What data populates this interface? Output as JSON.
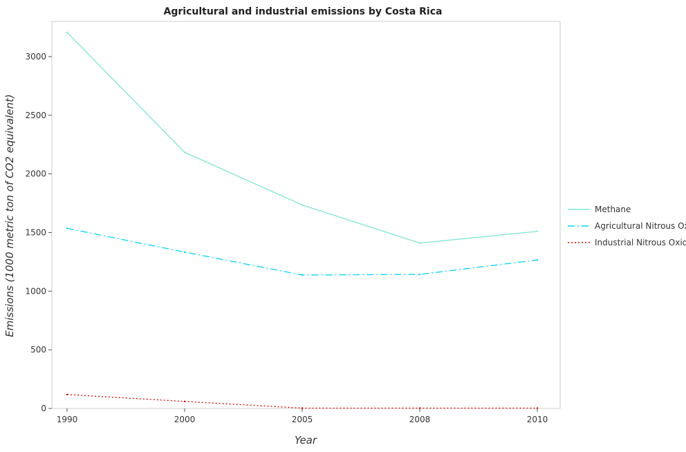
{
  "chart_data": {
    "type": "line",
    "title": "Agricultural and industrial emissions by Costa Rica",
    "xlabel": "Year",
    "ylabel": "Emissions (1000 metric ton of CO2 equivalent)",
    "categories": [
      "1990",
      "2000",
      "2005",
      "2008",
      "2010"
    ],
    "ylim": [
      0,
      3300
    ],
    "yticks": [
      0,
      500,
      1000,
      1500,
      2000,
      2500,
      3000
    ],
    "grid": false,
    "legend_position": "right",
    "series": [
      {
        "name": "Methane",
        "color": "#7fe5d2",
        "dash": "solid",
        "values": [
          3206,
          2184,
          1735,
          1410,
          1510
        ]
      },
      {
        "name": "Agricultural Nitrous Oxide",
        "color": "#00d4f7",
        "dash": "dashdot",
        "values": [
          1536,
          1333,
          1138,
          1143,
          1266
        ]
      },
      {
        "name": "Industrial Nitrous Oxide",
        "color": "#d40000",
        "dash": "dotted",
        "values": [
          119,
          60,
          3,
          3,
          3
        ]
      }
    ]
  }
}
